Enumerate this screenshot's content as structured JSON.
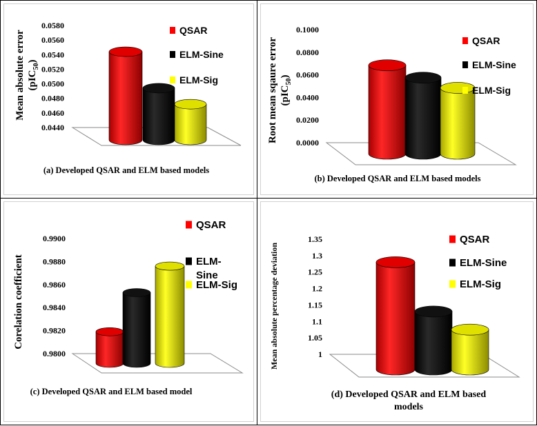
{
  "colors": {
    "qsar": "#ff0000",
    "elm_sine": "#000000",
    "elm_sig": "#ffff00"
  },
  "chart_data": [
    {
      "type": "bar",
      "title": "",
      "caption": "(a) Developed QSAR and  ELM based models",
      "ylabel": "Mean absolute error",
      "ylabel_unit_main": "(pIC",
      "ylabel_unit_sub": "50",
      "ylabel_unit_end": ")",
      "xlabel": "",
      "ylim": [
        0.044,
        0.058
      ],
      "yticks": [
        "0.0440",
        "0.0460",
        "0.0480",
        "0.0500",
        "0.0520",
        "0.0540",
        "0.0560",
        "0.0580"
      ],
      "series": [
        {
          "name": "QSAR",
          "value": 0.0544
        },
        {
          "name": "ELM-Sine",
          "value": 0.0494
        },
        {
          "name": "ELM-Sig",
          "value": 0.0472
        }
      ],
      "legend": [
        "QSAR",
        "ELM-Sine",
        "ELM-Sig"
      ]
    },
    {
      "type": "bar",
      "title": "",
      "caption": "(b) Developed QSAR and ELM based models",
      "ylabel": "Root mean sqaure error",
      "ylabel_unit_main": "(pIC",
      "ylabel_unit_sub": "50",
      "ylabel_unit_end": ")",
      "xlabel": "",
      "ylim": [
        0.0,
        0.1
      ],
      "yticks": [
        "0.0000",
        "0.0200",
        "0.0400",
        "0.0600",
        "0.0800",
        "0.1000"
      ],
      "series": [
        {
          "name": "QSAR",
          "value": 0.0685
        },
        {
          "name": "ELM-Sine",
          "value": 0.0575
        },
        {
          "name": "ELM-Sig",
          "value": 0.0485
        }
      ],
      "legend": [
        "QSAR",
        "ELM-Sine",
        "ELM-Sig"
      ]
    },
    {
      "type": "bar",
      "title": "",
      "caption": "(c) Developed QSAR and ELM based model",
      "ylabel": "Corelation coefficient",
      "xlabel": "",
      "ylim": [
        0.98,
        0.99
      ],
      "yticks": [
        "0.9800",
        "0.9820",
        "0.9840",
        "0.9860",
        "0.9880",
        "0.9900"
      ],
      "series": [
        {
          "name": "QSAR",
          "value": 0.9819
        },
        {
          "name": "ELM-Sine",
          "value": 0.9853
        },
        {
          "name": "ELM-Sig",
          "value": 0.9876
        }
      ],
      "legend": [
        "QSAR",
        "ELM-\nSine",
        "ELM-Sig"
      ]
    },
    {
      "type": "bar",
      "title": "",
      "caption": "(d) Developed QSAR and ELM based models",
      "caption_line1": "(d) Developed QSAR and ELM based",
      "caption_line2": "models",
      "ylabel": "Mean absolute percentage deviation",
      "xlabel": "",
      "ylim": [
        1.0,
        1.35
      ],
      "yticks": [
        "1",
        "1.05",
        "1.1",
        "1.15",
        "1.2",
        "1.25",
        "1.3",
        "1.35"
      ],
      "series": [
        {
          "name": "QSAR",
          "value": 1.28
        },
        {
          "name": "ELM-Sine",
          "value": 1.13
        },
        {
          "name": "ELM-Sig",
          "value": 1.075
        }
      ],
      "legend": [
        "QSAR",
        "ELM-Sine",
        "ELM-Sig"
      ]
    }
  ]
}
